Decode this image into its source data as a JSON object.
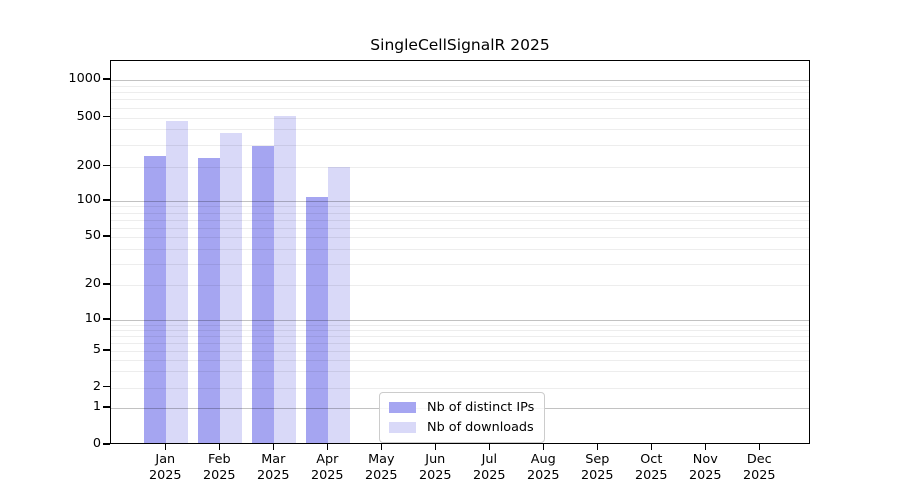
{
  "title": "SingleCellSignalR 2025",
  "chart_data": {
    "type": "bar",
    "title": "SingleCellSignalR 2025",
    "categories": [
      "Jan",
      "Feb",
      "Mar",
      "Apr",
      "May",
      "Jun",
      "Jul",
      "Aug",
      "Sep",
      "Oct",
      "Nov",
      "Dec"
    ],
    "x_year_label": "2025",
    "series": [
      {
        "name": "Nb of distinct IPs",
        "color": "#a5a5f1",
        "values": [
          243,
          235,
          293,
          108,
          null,
          null,
          null,
          null,
          null,
          null,
          null,
          null
        ]
      },
      {
        "name": "Nb of downloads",
        "color": "#d9d9f8",
        "values": [
          470,
          375,
          512,
          200,
          null,
          null,
          null,
          null,
          null,
          null,
          null,
          null
        ]
      }
    ],
    "y_axis": {
      "scale": "symlog",
      "ticks": [
        0,
        1,
        2,
        5,
        10,
        20,
        50,
        100,
        200,
        500,
        1000
      ],
      "range": [
        0,
        1400
      ]
    },
    "legend": {
      "entries": [
        "Nb of distinct IPs",
        "Nb of downloads"
      ],
      "position": "inside-bottom-center"
    },
    "grid": "horizontal major and minor gridlines"
  }
}
